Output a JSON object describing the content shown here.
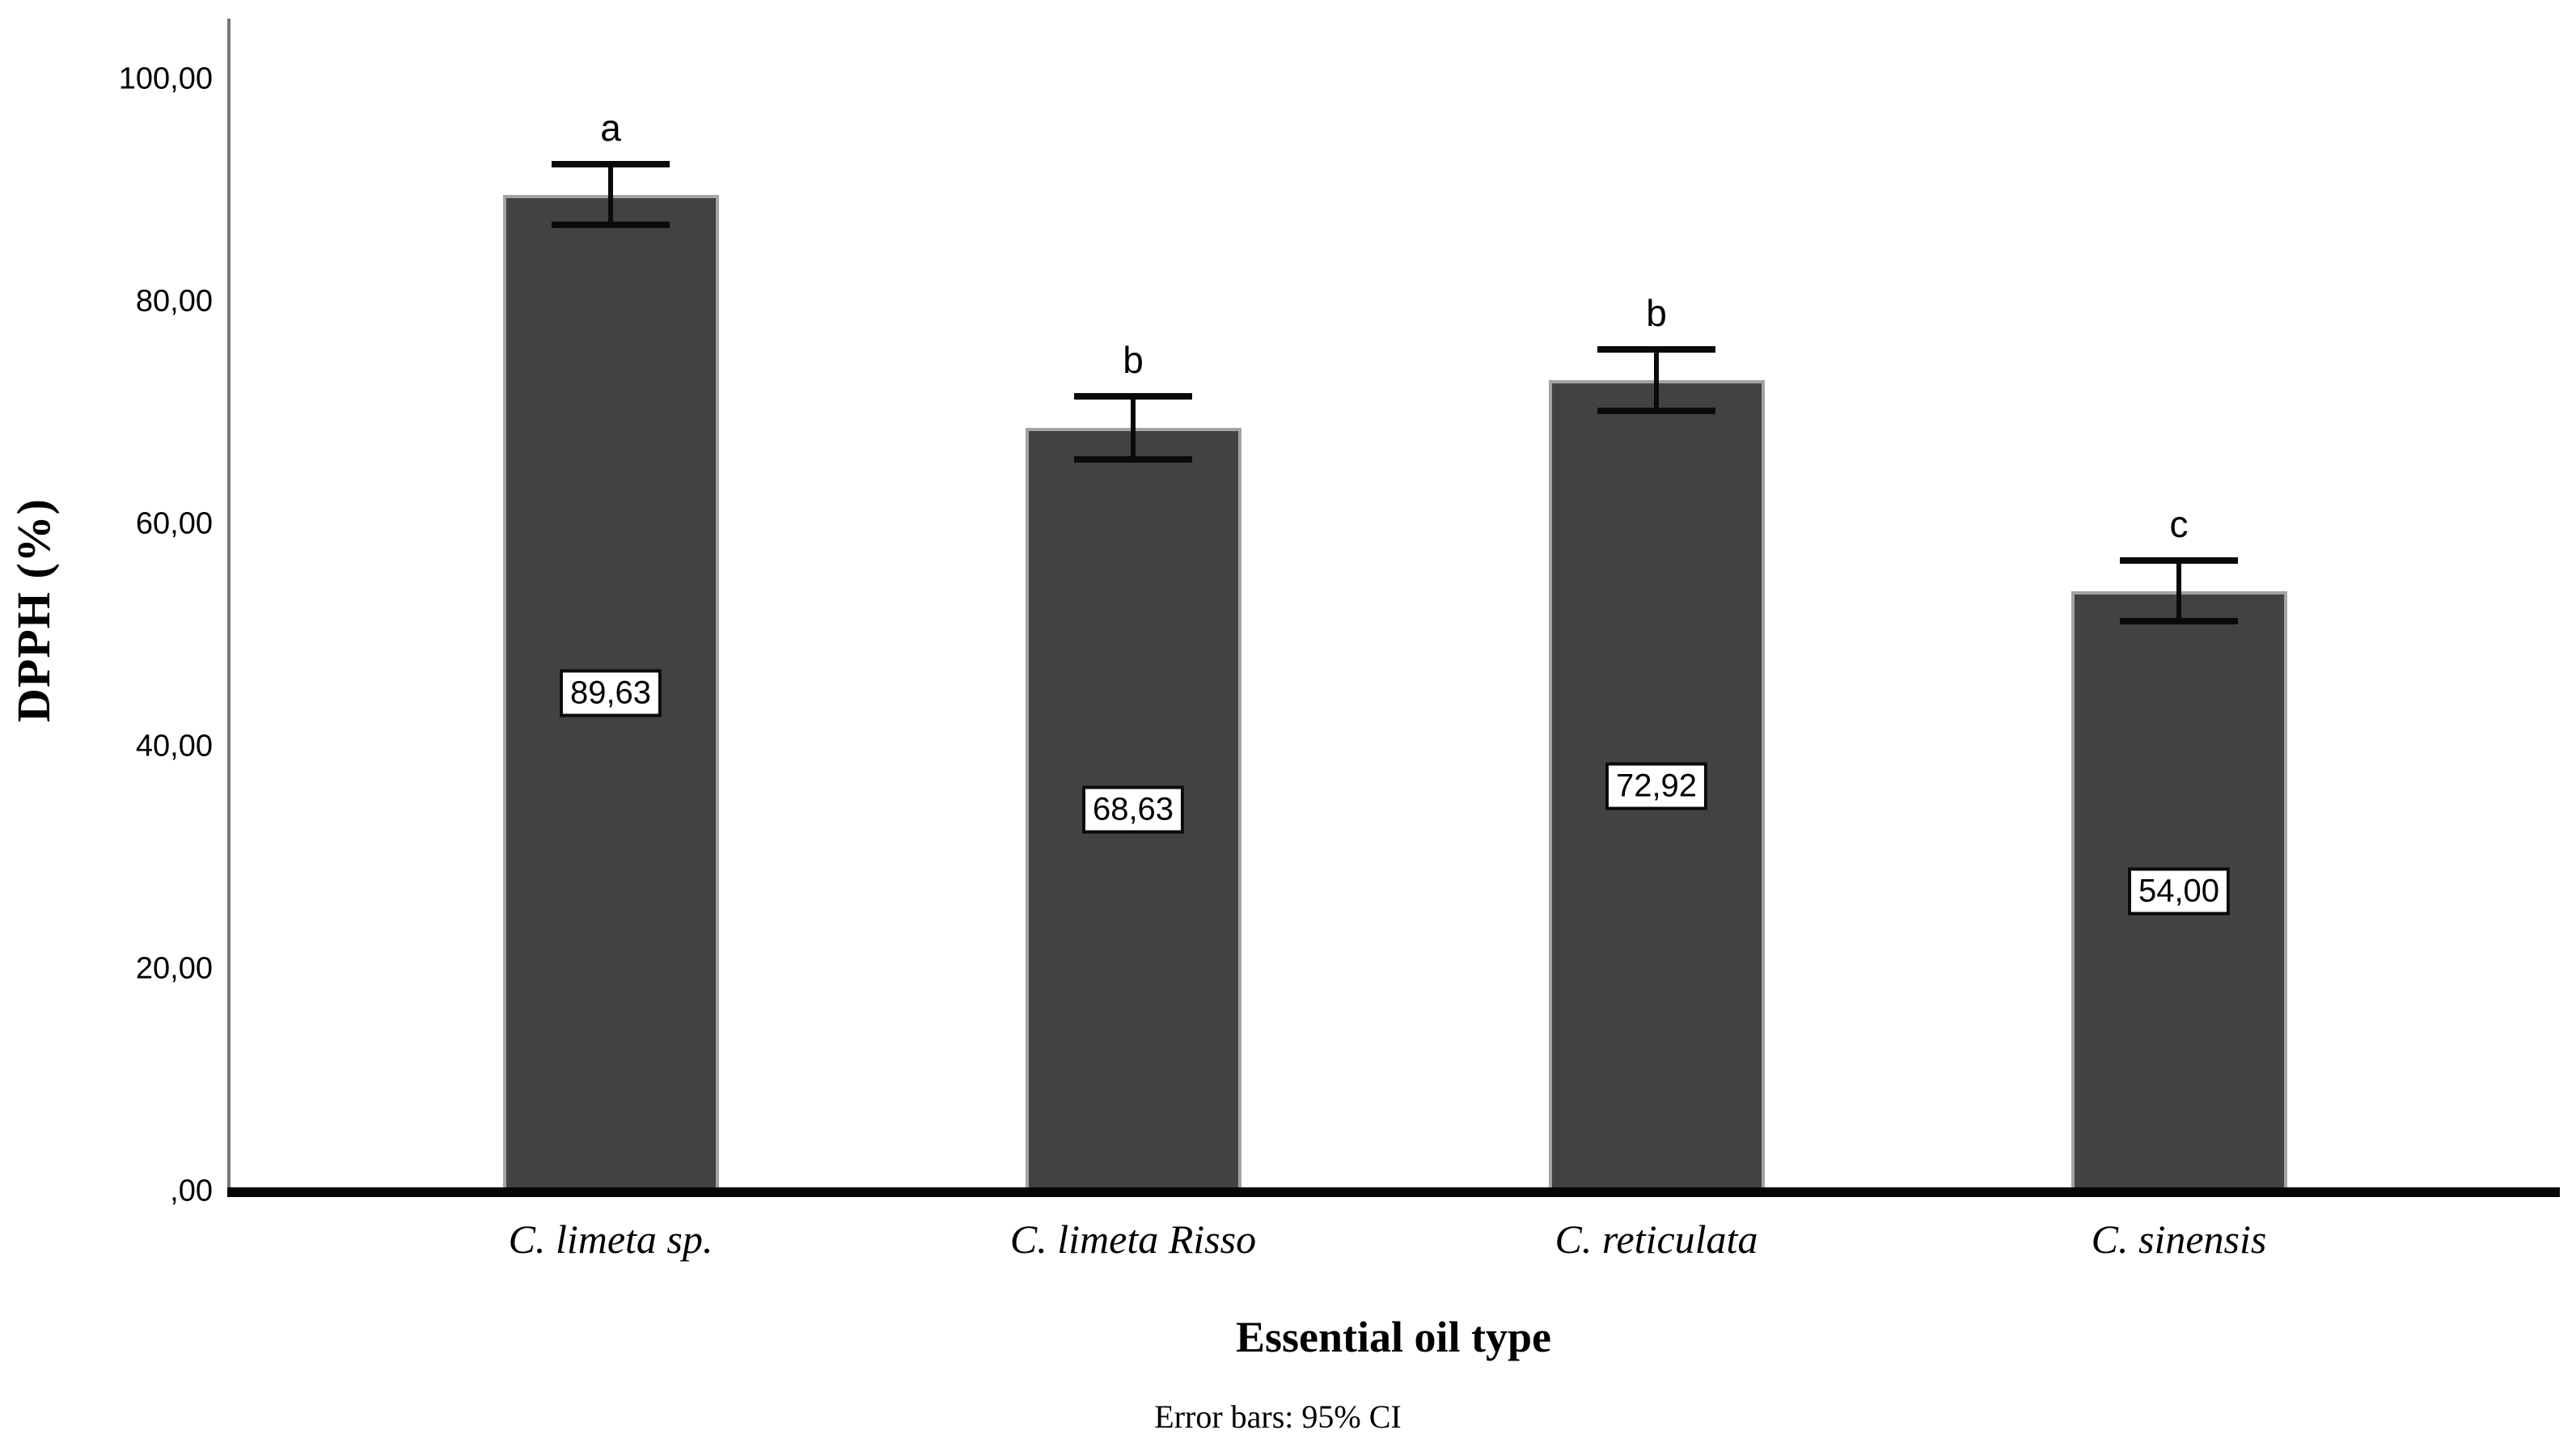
{
  "chart_data": {
    "type": "bar",
    "title": "",
    "xlabel": "Essential oil type",
    "ylabel": "DPPH (%)",
    "footnote": "Error bars: 95% CI",
    "categories": [
      "C. limeta sp.",
      "C. limeta Risso",
      "C. reticulata",
      "C. sinensis"
    ],
    "values": [
      89.63,
      68.63,
      72.92,
      54.0
    ],
    "value_labels": [
      "89,63",
      "68,63",
      "72,92",
      "54,00"
    ],
    "sig_letters": [
      "a",
      "b",
      "b",
      "c"
    ],
    "error_bars_95ci": [
      {
        "low": 86.9,
        "high": 92.4
      },
      {
        "low": 65.8,
        "high": 71.5
      },
      {
        "low": 70.2,
        "high": 75.7
      },
      {
        "low": 51.3,
        "high": 56.7
      }
    ],
    "y_ticks": [
      {
        "value": 0,
        "label": ",00"
      },
      {
        "value": 20,
        "label": "20,00"
      },
      {
        "value": 40,
        "label": "40,00"
      },
      {
        "value": 60,
        "label": "60,00"
      },
      {
        "value": 80,
        "label": "80,00"
      },
      {
        "value": 100,
        "label": "100,00"
      }
    ],
    "ylim": [
      0,
      105
    ],
    "grid": false,
    "legend": false,
    "decimal_separator": ",",
    "bar_color": "#424242",
    "bar_border_color": "#a3a3a3",
    "error_bar_color": "#0a0a0a",
    "axis_line_color": "#050505",
    "y_axis_line_color": "#777777",
    "background_color": "#ffffff"
  }
}
